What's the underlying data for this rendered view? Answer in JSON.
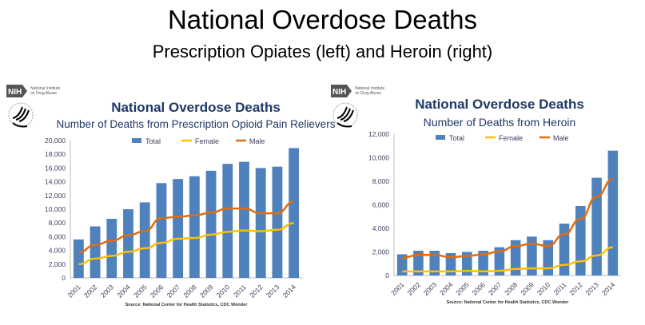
{
  "slide": {
    "title": "National Overdose Deaths",
    "subtitle": "Prescription Opiates (left) and Heroin (right)"
  },
  "logo": {
    "badge": "NIH",
    "org": [
      "National Institute",
      "on Drug Abuse"
    ],
    "seal_icon": "hhs-eagle-seal-icon"
  },
  "colors": {
    "total": "#4f81bd",
    "female": "#ffc000",
    "male": "#e46c0a",
    "title": "#1f3864",
    "axis_text": "#404060"
  },
  "chart_data": [
    {
      "type": "bar",
      "title": "National Overdose Deaths",
      "subtitle": "Number of Deaths from Prescription Opioid Pain Relievers",
      "categories": [
        "2001",
        "2002",
        "2003",
        "2004",
        "2005",
        "2006",
        "2007",
        "2008",
        "2009",
        "2010",
        "2011",
        "2012",
        "2013",
        "2014"
      ],
      "series": [
        {
          "name": "Total",
          "kind": "bar",
          "values": [
            5600,
            7500,
            8600,
            10000,
            11000,
            13800,
            14400,
            14800,
            15600,
            16600,
            16900,
            16000,
            16200,
            18900
          ]
        },
        {
          "name": "Female",
          "kind": "line",
          "values": [
            2000,
            2800,
            3200,
            3800,
            4300,
            5100,
            5700,
            5800,
            6300,
            6700,
            6900,
            6800,
            7000,
            8000
          ]
        },
        {
          "name": "Male",
          "kind": "line",
          "values": [
            3700,
            4800,
            5400,
            6200,
            6800,
            8700,
            8900,
            9100,
            9500,
            10100,
            10100,
            9400,
            9400,
            11100
          ]
        }
      ],
      "yticks": [
        "0",
        "2,000",
        "4,000",
        "6,000",
        "8,000",
        "10,000",
        "12,000",
        "14,000",
        "16,000",
        "18,000",
        "20,000"
      ],
      "ylim": [
        0,
        20000
      ],
      "legend": "top",
      "grid": false,
      "source": "Source: National Center for Health Statistics, CDC Wonder"
    },
    {
      "type": "bar",
      "title": "National Overdose Deaths",
      "subtitle": "Number of Deaths from Heroin",
      "categories": [
        "2001",
        "2002",
        "2003",
        "2004",
        "2005",
        "2006",
        "2007",
        "2008",
        "2009",
        "2010",
        "2011",
        "2012",
        "2013",
        "2014"
      ],
      "series": [
        {
          "name": "Total",
          "kind": "bar",
          "values": [
            1800,
            2100,
            2100,
            1900,
            2000,
            2100,
            2400,
            3000,
            3300,
            3000,
            4400,
            5900,
            8300,
            10600
          ]
        },
        {
          "name": "Female",
          "kind": "line",
          "values": [
            350,
            350,
            350,
            350,
            400,
            350,
            400,
            550,
            600,
            600,
            900,
            1200,
            1700,
            2400
          ]
        },
        {
          "name": "Male",
          "kind": "line",
          "values": [
            1500,
            1750,
            1750,
            1550,
            1650,
            1800,
            2050,
            2500,
            2700,
            2500,
            3500,
            4800,
            6700,
            8200
          ]
        }
      ],
      "yticks": [
        "0",
        "2,000",
        "4,000",
        "6,000",
        "8,000",
        "10,000",
        "12,000"
      ],
      "ylim": [
        0,
        12000
      ],
      "legend": "top",
      "grid": false,
      "source": "Source: National Center for Health Statistics, CDC Wonder"
    }
  ]
}
